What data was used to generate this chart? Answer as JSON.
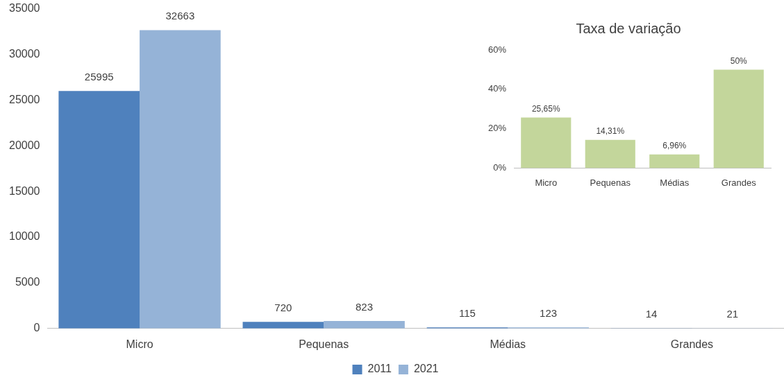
{
  "chart_data": [
    {
      "type": "bar",
      "categories": [
        "Micro",
        "Pequenas",
        "Médias",
        "Grandes"
      ],
      "series": [
        {
          "name": "2011",
          "color": "#4f81bd",
          "values": [
            25995,
            720,
            115,
            14
          ]
        },
        {
          "name": "2021",
          "color": "#95b3d7",
          "values": [
            32663,
            823,
            123,
            21
          ]
        }
      ],
      "ylim": [
        0,
        35000
      ],
      "yticks": [
        0,
        5000,
        10000,
        15000,
        20000,
        25000,
        30000,
        35000
      ],
      "grid": false,
      "legend": "bottom",
      "data_labels": true
    },
    {
      "type": "bar",
      "title": "Taxa de variação",
      "categories": [
        "Micro",
        "Pequenas",
        "Médias",
        "Grandes"
      ],
      "values": [
        25.65,
        14.31,
        6.96,
        50
      ],
      "value_labels": [
        "25,65%",
        "14,31%",
        "6,96%",
        "50%"
      ],
      "color": "#c3d69b",
      "ylim": [
        0,
        60
      ],
      "yticks": [
        {
          "value": 0,
          "label": "0%"
        },
        {
          "value": 20,
          "label": "20%"
        },
        {
          "value": 40,
          "label": "40%"
        },
        {
          "value": 60,
          "label": "60%"
        }
      ],
      "grid": false,
      "legend": false
    }
  ]
}
